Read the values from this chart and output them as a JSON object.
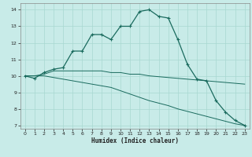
{
  "xlabel": "Humidex (Indice chaleur)",
  "bg_color": "#c8ebe8",
  "grid_color": "#a8d8d0",
  "line_color": "#1a6b5e",
  "xlim": [
    -0.5,
    23.5
  ],
  "ylim": [
    6.8,
    14.4
  ],
  "xticks": [
    0,
    1,
    2,
    3,
    4,
    5,
    6,
    7,
    8,
    9,
    10,
    11,
    12,
    13,
    14,
    15,
    16,
    17,
    18,
    19,
    20,
    21,
    22,
    23
  ],
  "yticks": [
    7,
    8,
    9,
    10,
    11,
    12,
    13,
    14
  ],
  "line1_x": [
    0,
    1,
    2,
    3,
    4,
    5,
    6,
    7,
    8,
    9,
    10,
    11,
    12,
    13,
    14,
    15,
    16,
    17,
    18,
    19,
    20,
    21,
    22,
    23
  ],
  "line1_y": [
    10.0,
    9.85,
    10.2,
    10.4,
    10.5,
    11.5,
    11.5,
    12.5,
    12.5,
    12.2,
    13.0,
    13.0,
    13.9,
    14.0,
    13.6,
    13.5,
    12.2,
    10.7,
    9.8,
    9.7,
    8.5,
    7.8,
    7.3,
    7.0
  ],
  "line2_x": [
    0,
    1,
    2,
    3,
    4,
    5,
    6,
    7,
    8,
    9,
    10,
    11,
    12,
    13,
    14,
    15,
    16,
    17,
    18,
    19,
    20,
    21,
    22,
    23
  ],
  "line2_y": [
    10.0,
    10.0,
    10.1,
    10.3,
    10.3,
    10.3,
    10.3,
    10.3,
    10.3,
    10.2,
    10.2,
    10.1,
    10.1,
    10.0,
    9.95,
    9.9,
    9.85,
    9.8,
    9.75,
    9.7,
    9.65,
    9.6,
    9.55,
    9.5
  ],
  "line3_x": [
    0,
    1,
    2,
    3,
    4,
    5,
    6,
    7,
    8,
    9,
    10,
    11,
    12,
    13,
    14,
    15,
    16,
    17,
    18,
    19,
    20,
    21,
    22,
    23
  ],
  "line3_y": [
    10.0,
    10.0,
    10.0,
    9.9,
    9.8,
    9.7,
    9.6,
    9.5,
    9.4,
    9.3,
    9.1,
    8.9,
    8.7,
    8.5,
    8.35,
    8.2,
    8.0,
    7.85,
    7.7,
    7.55,
    7.4,
    7.25,
    7.1,
    7.0
  ]
}
